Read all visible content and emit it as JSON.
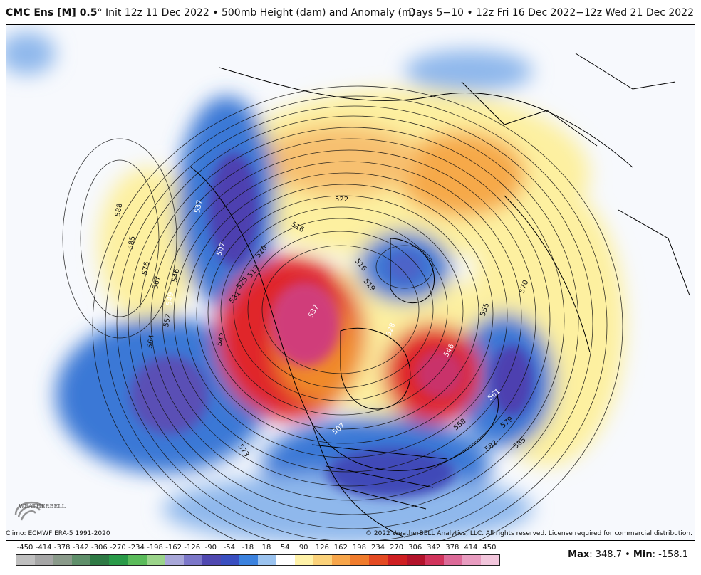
{
  "header": {
    "model_name": "CMC Ens [M] 0.5",
    "degree_mark": "°",
    "init_text": " Init 12z 11 Dec 2022 • 500mb Height (dam) and Anomaly (m)",
    "valid_text": "Days 5−10 • 12z Fri 16 Dec 2022−12z Wed 21 Dec 2022"
  },
  "map": {
    "projection": "north polar stereographic",
    "contour_labels": [
      "588",
      "585",
      "576",
      "567",
      "546",
      "549",
      "552",
      "564",
      "537",
      "507",
      "516",
      "510",
      "522",
      "513",
      "531",
      "525",
      "543",
      "516",
      "519",
      "537",
      "528",
      "546",
      "555",
      "561",
      "570",
      "558",
      "579",
      "582",
      "585",
      "573",
      "507"
    ],
    "anomaly_colors": {
      "strong_negative": "#4d3fb0",
      "negative": "#3a78d6",
      "weak_negative": "#8fb8ec",
      "weak_positive": "#fdf0a0",
      "positive": "#f6a94a",
      "strong_positive": "#d8192a",
      "extreme_positive": "#d03d7a"
    }
  },
  "footer": {
    "logo_text": "WEATHERBELL",
    "climo": "Climo: ECMWF ERA-5 1991-2020",
    "copyright": "© 2022 WeatherBELL Analytics, LLC. All rights reserved. License required for commercial distribution."
  },
  "colorbar": {
    "ticks": [
      "-450",
      "-414",
      "-378",
      "-342",
      "-306",
      "-270",
      "-234",
      "-198",
      "-162",
      "-126",
      "-90",
      "-54",
      "-18",
      "18",
      "54",
      "90",
      "126",
      "162",
      "198",
      "234",
      "270",
      "306",
      "342",
      "378",
      "414",
      "450"
    ],
    "colors": [
      "#bfbfbf",
      "#a6a6a6",
      "#8a9a8a",
      "#5f8f6a",
      "#2f7a45",
      "#2a9a48",
      "#5bbb5a",
      "#9bd48a",
      "#a8a7d8",
      "#7c77c8",
      "#5048b0",
      "#3a4fc0",
      "#3b82de",
      "#9bc3ef",
      "#ffffff",
      "#fff2a8",
      "#fbd27a",
      "#f7a64a",
      "#f07c2c",
      "#e44a22",
      "#cf1f22",
      "#b3132b",
      "#d1345c",
      "#dc6a98",
      "#e89cc0",
      "#f2c6dc"
    ]
  },
  "stats": {
    "max_label": "Max",
    "max_value": ": 348.7",
    "separator": " • ",
    "min_label": "Min",
    "min_value": ": -158.1"
  }
}
